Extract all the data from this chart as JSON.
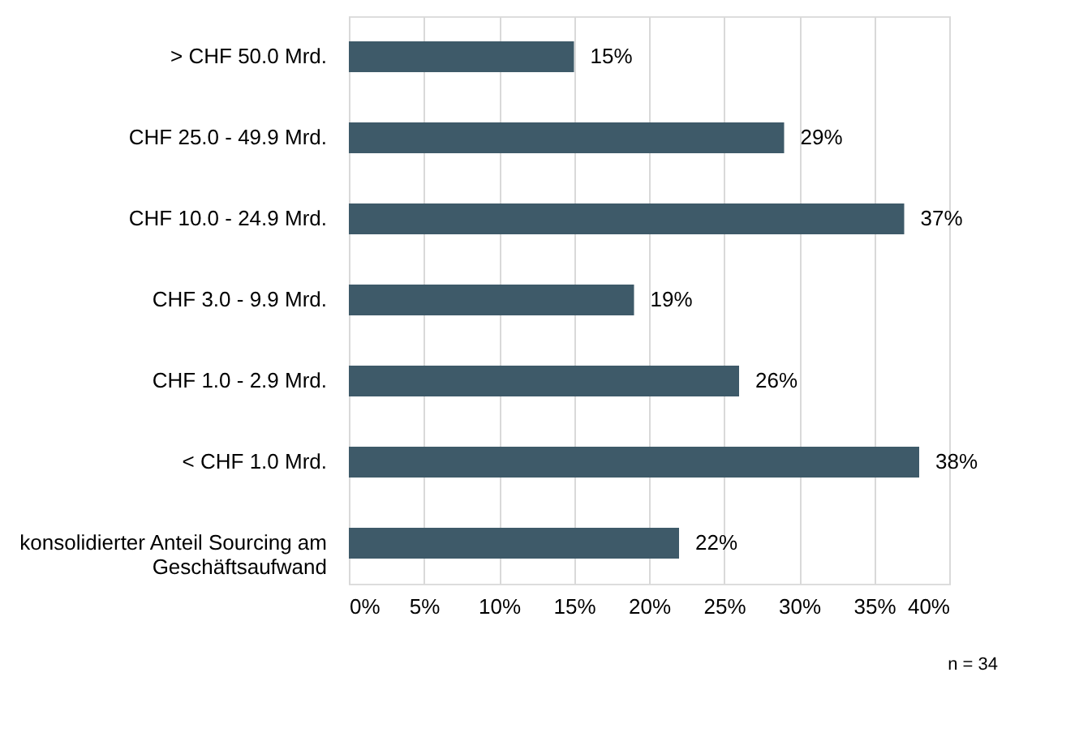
{
  "chart_data": {
    "type": "bar",
    "orientation": "horizontal",
    "categories": [
      "> CHF 50.0 Mrd.",
      "CHF 25.0 - 49.9 Mrd.",
      "CHF 10.0 - 24.9 Mrd.",
      "CHF 3.0 - 9.9 Mrd.",
      "CHF 1.0 - 2.9 Mrd.",
      "< CHF 1.0 Mrd.",
      "konsolidierter Anteil Sourcing am Geschäftsaufwand"
    ],
    "values": [
      15,
      29,
      37,
      19,
      26,
      38,
      22
    ],
    "value_labels": [
      "15%",
      "29%",
      "37%",
      "19%",
      "26%",
      "38%",
      "22%"
    ],
    "color": "#3e5a69",
    "xlim": [
      0,
      40
    ],
    "xticks": [
      {
        "value": 0,
        "label": "0%"
      },
      {
        "value": 5,
        "label": "5%"
      },
      {
        "value": 10,
        "label": "10%"
      },
      {
        "value": 15,
        "label": "15%"
      },
      {
        "value": 20,
        "label": "20%"
      },
      {
        "value": 25,
        "label": "25%"
      },
      {
        "value": 30,
        "label": "30%"
      },
      {
        "value": 35,
        "label": "35%"
      },
      {
        "value": 40,
        "label": "40%"
      }
    ],
    "grid": "x",
    "annotations": [
      "n = 34"
    ]
  }
}
